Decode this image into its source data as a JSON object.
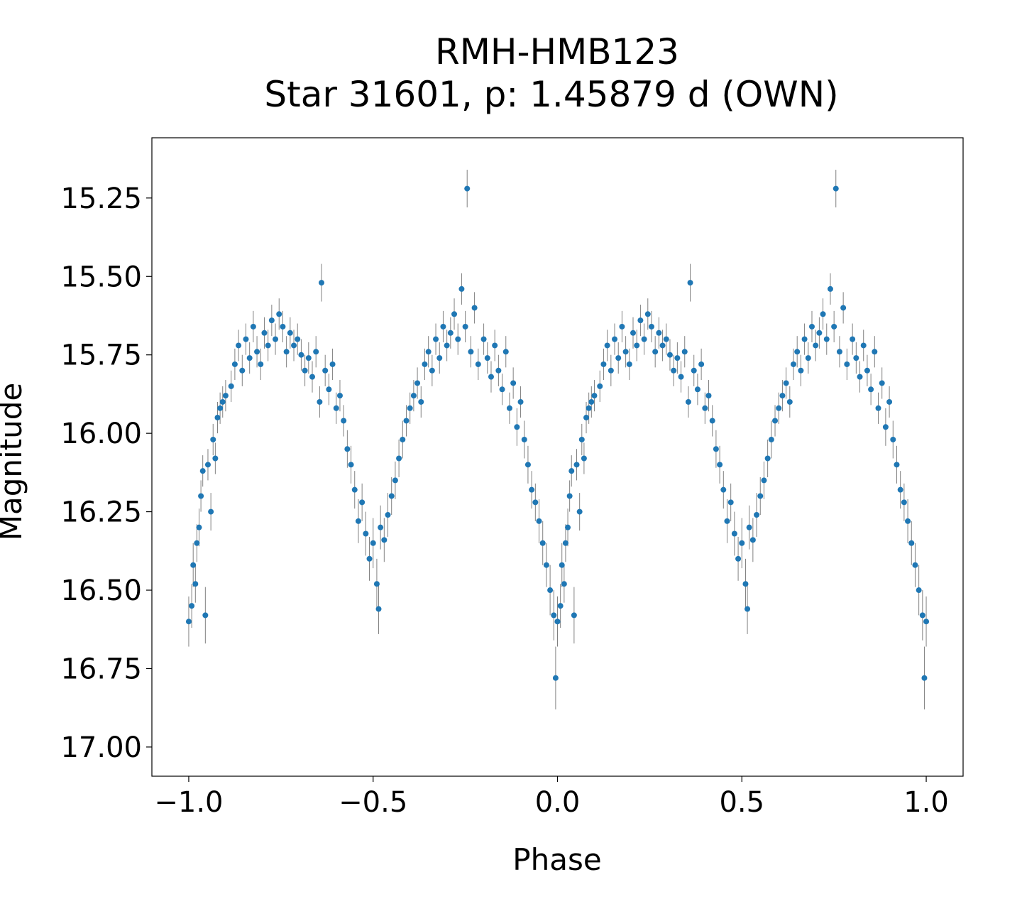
{
  "chart_data": {
    "type": "scatter",
    "title": "RMH-HMB123",
    "subtitle": "Star 31601, p: 1.45879 d (OWN)",
    "xlabel": "Phase",
    "ylabel": "Magnitude",
    "xlim": [
      -1.1,
      1.1
    ],
    "ylim": [
      17.093,
      15.058
    ],
    "y_inverted": true,
    "grid": false,
    "xticks": [
      -1.0,
      -0.5,
      0.0,
      0.5,
      1.0
    ],
    "xtick_labels": [
      "−1.0",
      "−0.5",
      "0.0",
      "0.5",
      "1.0"
    ],
    "yticks": [
      15.25,
      15.5,
      15.75,
      16.0,
      16.25,
      16.5,
      16.75,
      17.0
    ],
    "ytick_labels": [
      "15.25",
      "15.50",
      "15.75",
      "16.00",
      "16.25",
      "16.50",
      "16.75",
      "17.00"
    ],
    "marker_color": "#1f77b4",
    "errorbar_color": "#808080",
    "note": "each point is plotted at phase and phase-1",
    "points": [
      [
        0.0,
        16.6,
        0.08
      ],
      [
        0.008,
        16.55,
        0.07
      ],
      [
        0.012,
        16.42,
        0.07
      ],
      [
        0.018,
        16.48,
        0.06
      ],
      [
        0.022,
        16.35,
        0.06
      ],
      [
        0.028,
        16.3,
        0.06
      ],
      [
        0.033,
        16.2,
        0.05
      ],
      [
        0.038,
        16.12,
        0.05
      ],
      [
        0.045,
        16.58,
        0.09
      ],
      [
        0.052,
        16.1,
        0.05
      ],
      [
        0.06,
        16.25,
        0.06
      ],
      [
        0.066,
        16.02,
        0.05
      ],
      [
        0.072,
        16.08,
        0.05
      ],
      [
        0.078,
        15.95,
        0.05
      ],
      [
        0.085,
        15.92,
        0.05
      ],
      [
        0.092,
        15.9,
        0.05
      ],
      [
        0.1,
        15.88,
        0.05
      ],
      [
        0.115,
        15.85,
        0.05
      ],
      [
        0.125,
        15.78,
        0.05
      ],
      [
        0.135,
        15.72,
        0.05
      ],
      [
        0.145,
        15.8,
        0.05
      ],
      [
        0.155,
        15.7,
        0.05
      ],
      [
        0.165,
        15.76,
        0.05
      ],
      [
        0.175,
        15.66,
        0.05
      ],
      [
        0.185,
        15.74,
        0.05
      ],
      [
        0.195,
        15.78,
        0.05
      ],
      [
        0.205,
        15.68,
        0.05
      ],
      [
        0.215,
        15.72,
        0.05
      ],
      [
        0.225,
        15.64,
        0.05
      ],
      [
        0.235,
        15.7,
        0.05
      ],
      [
        0.245,
        15.62,
        0.05
      ],
      [
        0.255,
        15.66,
        0.05
      ],
      [
        0.265,
        15.74,
        0.05
      ],
      [
        0.275,
        15.68,
        0.05
      ],
      [
        0.285,
        15.72,
        0.05
      ],
      [
        0.295,
        15.7,
        0.05
      ],
      [
        0.305,
        15.75,
        0.05
      ],
      [
        0.315,
        15.8,
        0.05
      ],
      [
        0.325,
        15.76,
        0.05
      ],
      [
        0.335,
        15.82,
        0.05
      ],
      [
        0.345,
        15.74,
        0.05
      ],
      [
        0.355,
        15.9,
        0.05
      ],
      [
        0.36,
        15.52,
        0.06
      ],
      [
        0.37,
        15.8,
        0.05
      ],
      [
        0.38,
        15.86,
        0.05
      ],
      [
        0.39,
        15.78,
        0.05
      ],
      [
        0.4,
        15.92,
        0.05
      ],
      [
        0.41,
        15.88,
        0.05
      ],
      [
        0.42,
        15.96,
        0.05
      ],
      [
        0.43,
        16.05,
        0.06
      ],
      [
        0.44,
        16.1,
        0.06
      ],
      [
        0.45,
        16.18,
        0.06
      ],
      [
        0.46,
        16.28,
        0.07
      ],
      [
        0.47,
        16.22,
        0.06
      ],
      [
        0.48,
        16.32,
        0.07
      ],
      [
        0.49,
        16.4,
        0.07
      ],
      [
        0.5,
        16.35,
        0.08
      ],
      [
        0.51,
        16.48,
        0.08
      ],
      [
        0.515,
        16.56,
        0.08
      ],
      [
        0.52,
        16.3,
        0.07
      ],
      [
        0.53,
        16.34,
        0.07
      ],
      [
        0.54,
        16.26,
        0.07
      ],
      [
        0.55,
        16.2,
        0.06
      ],
      [
        0.56,
        16.15,
        0.06
      ],
      [
        0.57,
        16.08,
        0.06
      ],
      [
        0.58,
        16.02,
        0.06
      ],
      [
        0.59,
        15.96,
        0.05
      ],
      [
        0.6,
        15.92,
        0.05
      ],
      [
        0.61,
        15.88,
        0.05
      ],
      [
        0.62,
        15.84,
        0.05
      ],
      [
        0.63,
        15.9,
        0.05
      ],
      [
        0.64,
        15.78,
        0.05
      ],
      [
        0.65,
        15.74,
        0.05
      ],
      [
        0.66,
        15.8,
        0.05
      ],
      [
        0.67,
        15.7,
        0.05
      ],
      [
        0.68,
        15.76,
        0.05
      ],
      [
        0.69,
        15.66,
        0.05
      ],
      [
        0.7,
        15.72,
        0.05
      ],
      [
        0.71,
        15.68,
        0.05
      ],
      [
        0.72,
        15.62,
        0.05
      ],
      [
        0.73,
        15.7,
        0.05
      ],
      [
        0.74,
        15.54,
        0.05
      ],
      [
        0.75,
        15.66,
        0.05
      ],
      [
        0.755,
        15.22,
        0.06
      ],
      [
        0.765,
        15.74,
        0.05
      ],
      [
        0.775,
        15.6,
        0.05
      ],
      [
        0.785,
        15.78,
        0.05
      ],
      [
        0.8,
        15.7,
        0.05
      ],
      [
        0.81,
        15.76,
        0.05
      ],
      [
        0.82,
        15.82,
        0.05
      ],
      [
        0.83,
        15.72,
        0.05
      ],
      [
        0.84,
        15.8,
        0.05
      ],
      [
        0.85,
        15.86,
        0.05
      ],
      [
        0.86,
        15.74,
        0.05
      ],
      [
        0.87,
        15.92,
        0.05
      ],
      [
        0.88,
        15.84,
        0.05
      ],
      [
        0.89,
        15.98,
        0.06
      ],
      [
        0.9,
        15.9,
        0.05
      ],
      [
        0.91,
        16.02,
        0.06
      ],
      [
        0.92,
        16.1,
        0.06
      ],
      [
        0.93,
        16.18,
        0.06
      ],
      [
        0.94,
        16.22,
        0.06
      ],
      [
        0.95,
        16.28,
        0.07
      ],
      [
        0.96,
        16.35,
        0.07
      ],
      [
        0.97,
        16.42,
        0.07
      ],
      [
        0.98,
        16.5,
        0.08
      ],
      [
        0.99,
        16.58,
        0.08
      ],
      [
        0.995,
        16.78,
        0.1
      ],
      [
        1.0,
        16.6,
        0.08
      ]
    ]
  }
}
